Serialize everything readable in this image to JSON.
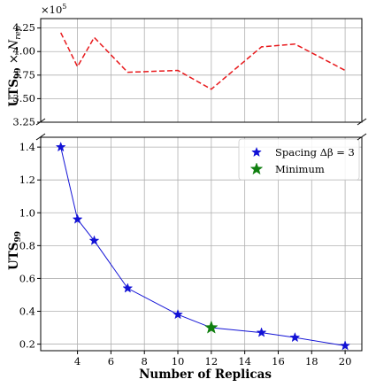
{
  "chart_data": [
    {
      "type": "line",
      "panel": "top",
      "ylabel_main": "UTS",
      "ylabel_sub": "99",
      "ylabel_suffix": " × N",
      "ylabel_suffix_sub": "rep",
      "offset_text_base": "×10",
      "offset_text_exp": "5",
      "ylim": [
        3.25,
        4.35
      ],
      "yticks": [
        "3.25",
        "3.50",
        "3.75",
        "4.00",
        "4.25"
      ],
      "ytick_values": [
        3.25,
        3.5,
        3.75,
        4.0,
        4.25
      ],
      "grid": true,
      "line_color": "#e8191c",
      "line_style": "dashed",
      "x": [
        3,
        4,
        5,
        7,
        10,
        12,
        15,
        17,
        20
      ],
      "y": [
        4.2,
        3.84,
        4.15,
        3.78,
        3.8,
        3.6,
        4.05,
        4.08,
        3.8
      ]
    },
    {
      "type": "line",
      "panel": "bottom",
      "xlabel": "Number of Replicas",
      "ylabel_main": "UTS",
      "ylabel_sub": "99",
      "xlim": [
        1.8,
        21.0
      ],
      "ylim": [
        0.16,
        1.46
      ],
      "xticks": [
        "4",
        "6",
        "8",
        "10",
        "12",
        "14",
        "16",
        "18",
        "20"
      ],
      "xtick_values": [
        4,
        6,
        8,
        10,
        12,
        14,
        16,
        18,
        20
      ],
      "yticks": [
        "0.2",
        "0.4",
        "0.6",
        "0.8",
        "1.0",
        "1.2",
        "1.4"
      ],
      "ytick_values": [
        0.2,
        0.4,
        0.6,
        0.8,
        1.0,
        1.2,
        1.4
      ],
      "grid": true,
      "legend_position": "top-right",
      "series": [
        {
          "name": "Spacing Δβ = 3",
          "color": "#1212d6",
          "marker": "star",
          "x": [
            3,
            4,
            5,
            7,
            10,
            12,
            15,
            17,
            20
          ],
          "y": [
            1.4,
            0.96,
            0.83,
            0.54,
            0.38,
            0.3,
            0.27,
            0.24,
            0.19
          ]
        }
      ],
      "minimum": {
        "name": "Minimum",
        "color": "#0f7f0f",
        "marker": "star",
        "x": 12,
        "y": 0.3
      }
    }
  ]
}
